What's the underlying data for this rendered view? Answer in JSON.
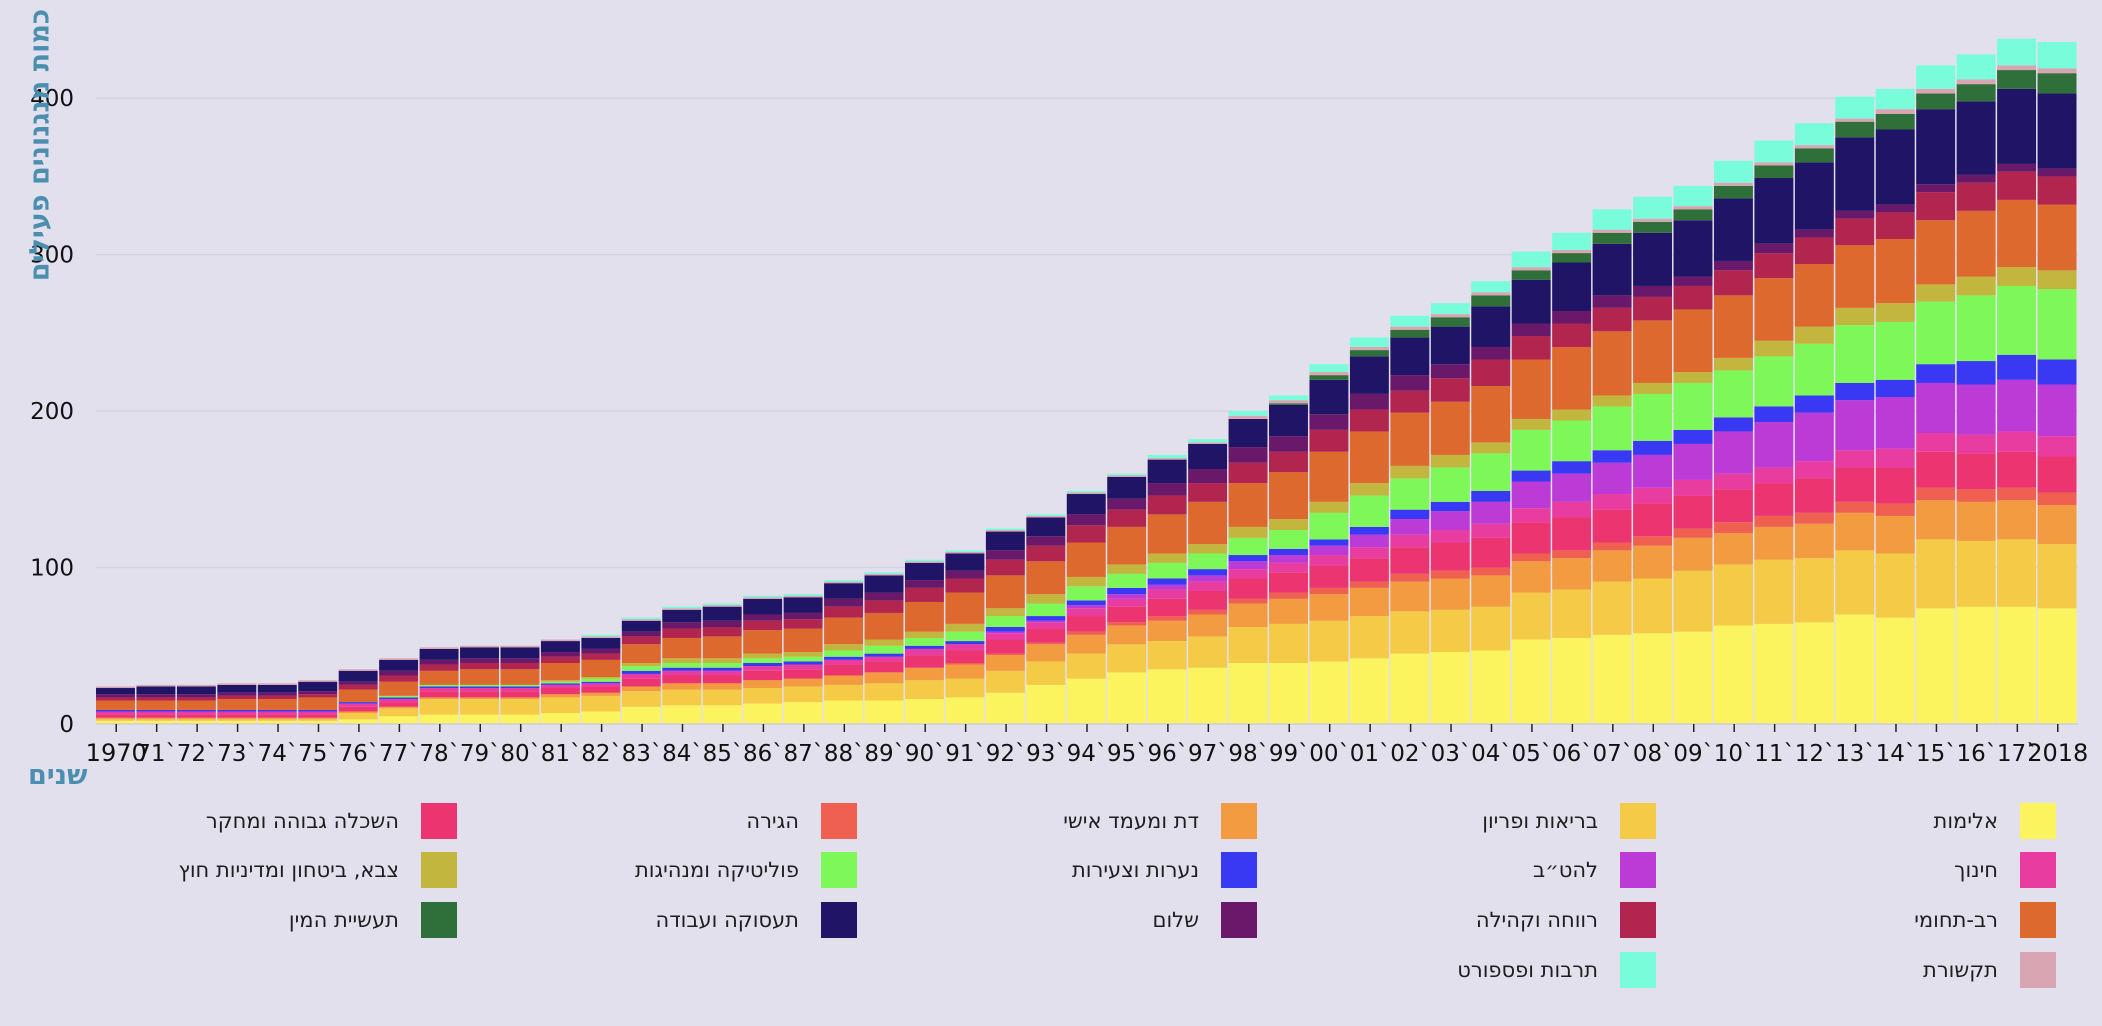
{
  "chart_data": {
    "type": "bar",
    "stacked": true,
    "ylabel": "כמות מנגנונים פעילים",
    "xlabel": "שנים",
    "ylim": [
      0,
      450
    ],
    "yticks": [
      0,
      100,
      200,
      300,
      400
    ],
    "grid": true,
    "legend_position": "bottom",
    "categories": [
      1970,
      1971,
      1972,
      1973,
      1974,
      1975,
      1976,
      1977,
      1978,
      1979,
      1980,
      1981,
      1982,
      1983,
      1984,
      1985,
      1986,
      1987,
      1988,
      1989,
      1990,
      1991,
      1992,
      1993,
      1994,
      1995,
      1996,
      1997,
      1998,
      1999,
      2000,
      2001,
      2002,
      2003,
      2004,
      2005,
      2006,
      2007,
      2008,
      2009,
      2010,
      2011,
      2012,
      2013,
      2014,
      2015,
      2016,
      2017,
      2018
    ],
    "tick_labels": [
      "1970",
      "71`",
      "72`",
      "73`",
      "74`",
      "75`",
      "76`",
      "77`",
      "78`",
      "79`",
      "80`",
      "81`",
      "82`",
      "83`",
      "84`",
      "85`",
      "86`",
      "87`",
      "88`",
      "89`",
      "90`",
      "91`",
      "92`",
      "93`",
      "94`",
      "95`",
      "96`",
      "97`",
      "98`",
      "99`",
      "00`",
      "01`",
      "02`",
      "03`",
      "04`",
      "05`",
      "06`",
      "07`",
      "08`",
      "09`",
      "10`",
      "11`",
      "12`",
      "13`",
      "14`",
      "15`",
      "16`",
      "17`",
      "2018"
    ],
    "series": [
      {
        "name": "אלימות",
        "color": "#fbf45e",
        "values": [
          2,
          2,
          2,
          2,
          2,
          2,
          3,
          5,
          6,
          6,
          6,
          7,
          8,
          11,
          12,
          12,
          13,
          14,
          15,
          15,
          16,
          17,
          20,
          25,
          29,
          33,
          35,
          36,
          39,
          39,
          40,
          42,
          45,
          46,
          47,
          54,
          55,
          57,
          58,
          59,
          63,
          64,
          65,
          70,
          68,
          74,
          75,
          75,
          74
        ]
      },
      {
        "name": "בריאות ופריון",
        "color": "#f5ca47",
        "values": [
          1,
          1,
          1,
          1,
          1,
          1,
          4,
          5,
          10,
          10,
          10,
          10,
          10,
          10,
          10,
          10,
          10,
          10,
          10,
          11,
          12,
          12,
          14,
          15,
          16,
          18,
          18,
          20,
          23,
          25,
          26,
          27,
          27,
          27,
          28,
          30,
          31,
          34,
          35,
          39,
          39,
          41,
          41,
          41,
          41,
          44,
          42,
          43,
          41
        ]
      },
      {
        "name": "דת ומעמד אישי",
        "color": "#f29b40",
        "values": [
          1,
          1,
          1,
          1,
          1,
          1,
          1,
          1,
          1,
          1,
          1,
          2,
          2,
          3,
          4,
          4,
          5,
          5,
          6,
          7,
          8,
          9,
          10,
          11,
          12,
          12,
          13,
          14,
          15,
          16,
          17,
          18,
          19,
          20,
          20,
          20,
          20,
          20,
          21,
          21,
          20,
          21,
          22,
          24,
          24,
          25,
          25,
          25,
          25
        ]
      },
      {
        "name": "הגירה",
        "color": "#ef6051",
        "values": [
          0,
          0,
          0,
          0,
          0,
          0,
          0,
          0,
          0,
          0,
          0,
          0,
          0,
          0,
          0,
          0,
          0,
          0,
          0,
          0,
          0,
          1,
          1,
          1,
          2,
          2,
          3,
          3,
          3,
          4,
          4,
          4,
          5,
          5,
          5,
          5,
          5,
          5,
          6,
          6,
          7,
          7,
          7,
          7,
          8,
          8,
          8,
          8,
          8
        ]
      },
      {
        "name": "השכלה גבוהה ומחקר",
        "color": "#ec3470",
        "values": [
          2,
          2,
          2,
          2,
          2,
          2,
          3,
          3,
          4,
          4,
          4,
          4,
          4,
          5,
          5,
          5,
          6,
          6,
          7,
          7,
          8,
          8,
          9,
          9,
          10,
          10,
          11,
          12,
          13,
          13,
          14,
          15,
          17,
          18,
          19,
          20,
          21,
          21,
          21,
          21,
          21,
          21,
          22,
          22,
          23,
          23,
          23,
          23,
          23
        ]
      },
      {
        "name": "חינוך",
        "color": "#e93ca1",
        "values": [
          2,
          2,
          2,
          2,
          2,
          2,
          2,
          2,
          2,
          2,
          2,
          2,
          2,
          3,
          3,
          3,
          3,
          3,
          3,
          3,
          4,
          4,
          4,
          4,
          5,
          5,
          6,
          6,
          6,
          6,
          7,
          7,
          8,
          8,
          9,
          9,
          10,
          10,
          10,
          10,
          10,
          10,
          11,
          11,
          12,
          12,
          12,
          13,
          13
        ]
      },
      {
        "name": "להט״ב",
        "color": "#bc3ad6",
        "values": [
          0,
          0,
          0,
          0,
          0,
          0,
          0,
          0,
          0,
          0,
          0,
          0,
          0,
          0,
          0,
          0,
          0,
          0,
          0,
          0,
          0,
          0,
          1,
          1,
          2,
          3,
          3,
          4,
          5,
          5,
          6,
          8,
          10,
          12,
          14,
          17,
          18,
          20,
          21,
          23,
          27,
          29,
          31,
          32,
          33,
          32,
          32,
          33,
          33
        ]
      },
      {
        "name": "נערות וצעירות",
        "color": "#3939f4",
        "values": [
          1,
          1,
          1,
          1,
          1,
          1,
          1,
          1,
          1,
          1,
          1,
          1,
          1,
          2,
          2,
          2,
          2,
          2,
          2,
          2,
          2,
          2,
          3,
          3,
          3,
          4,
          4,
          4,
          4,
          4,
          4,
          5,
          6,
          6,
          7,
          7,
          8,
          8,
          9,
          9,
          9,
          10,
          11,
          11,
          11,
          12,
          15,
          16,
          16
        ]
      },
      {
        "name": "פוליטיקה ומנהיגות",
        "color": "#7ef858",
        "values": [
          0,
          0,
          0,
          0,
          0,
          0,
          0,
          1,
          1,
          1,
          1,
          1,
          2,
          3,
          3,
          3,
          3,
          3,
          4,
          5,
          5,
          6,
          7,
          8,
          9,
          9,
          10,
          10,
          11,
          12,
          17,
          20,
          20,
          22,
          24,
          26,
          26,
          28,
          30,
          30,
          30,
          32,
          33,
          37,
          37,
          40,
          42,
          44,
          45
        ]
      },
      {
        "name": "צבא, ביטחון ומדיניות חוץ",
        "color": "#c2b63e",
        "values": [
          0,
          0,
          0,
          0,
          0,
          0,
          0,
          0,
          0,
          0,
          0,
          1,
          1,
          2,
          3,
          3,
          3,
          3,
          4,
          4,
          4,
          5,
          5,
          6,
          6,
          6,
          6,
          6,
          7,
          7,
          7,
          8,
          8,
          8,
          7,
          7,
          7,
          7,
          7,
          7,
          8,
          10,
          11,
          11,
          12,
          11,
          12,
          12,
          12
        ]
      },
      {
        "name": "רב-תחומי",
        "color": "#dd692e",
        "values": [
          6,
          6,
          6,
          7,
          7,
          8,
          8,
          9,
          9,
          10,
          10,
          11,
          11,
          12,
          13,
          14,
          15,
          15,
          17,
          17,
          19,
          20,
          21,
          21,
          22,
          24,
          25,
          27,
          28,
          30,
          32,
          33,
          34,
          34,
          36,
          38,
          40,
          41,
          40,
          40,
          40,
          40,
          40,
          40,
          41,
          41,
          42,
          43,
          42
        ]
      },
      {
        "name": "רווחה וקהילה",
        "color": "#b2254e",
        "values": [
          2,
          2,
          2,
          2,
          2,
          2,
          3,
          4,
          4,
          4,
          4,
          4,
          4,
          5,
          6,
          6,
          6,
          6,
          7,
          8,
          9,
          9,
          10,
          10,
          11,
          11,
          12,
          12,
          13,
          13,
          14,
          14,
          14,
          15,
          17,
          15,
          15,
          15,
          15,
          15,
          16,
          16,
          17,
          17,
          17,
          18,
          18,
          18,
          18
        ]
      },
      {
        "name": "שלום",
        "color": "#6a1869",
        "values": [
          2,
          2,
          2,
          2,
          2,
          2,
          2,
          3,
          3,
          3,
          3,
          3,
          3,
          3,
          4,
          4,
          4,
          4,
          5,
          5,
          5,
          5,
          6,
          6,
          7,
          7,
          8,
          9,
          10,
          10,
          10,
          10,
          10,
          9,
          8,
          8,
          8,
          8,
          7,
          6,
          6,
          6,
          5,
          5,
          5,
          5,
          5,
          5,
          5
        ]
      },
      {
        "name": "תעסוקה ועבודה",
        "color": "#201466",
        "values": [
          4,
          5,
          5,
          5,
          5,
          6,
          7,
          7,
          7,
          7,
          7,
          7,
          7,
          7,
          8,
          9,
          10,
          10,
          10,
          11,
          11,
          11,
          12,
          12,
          13,
          14,
          15,
          16,
          18,
          20,
          22,
          24,
          24,
          24,
          26,
          28,
          31,
          33,
          34,
          36,
          40,
          42,
          43,
          47,
          48,
          48,
          47,
          48,
          48
        ]
      },
      {
        "name": "תעשיית המין",
        "color": "#2f6f3a",
        "values": [
          0,
          0,
          0,
          0,
          0,
          0,
          0,
          0,
          0,
          0,
          0,
          0,
          0,
          0,
          0,
          0,
          0,
          0,
          0,
          0,
          0,
          0,
          0,
          0,
          0,
          0,
          0,
          0,
          0,
          1,
          3,
          4,
          5,
          6,
          7,
          6,
          6,
          7,
          7,
          7,
          8,
          8,
          9,
          10,
          10,
          10,
          11,
          12,
          13
        ]
      },
      {
        "name": "תקשורת",
        "color": "#d9a5b2",
        "values": [
          1,
          1,
          1,
          1,
          1,
          1,
          1,
          1,
          1,
          1,
          1,
          1,
          1,
          1,
          1,
          1,
          1,
          1,
          1,
          1,
          1,
          1,
          1,
          1,
          1,
          1,
          1,
          1,
          2,
          2,
          2,
          2,
          2,
          2,
          2,
          2,
          2,
          2,
          2,
          2,
          2,
          2,
          2,
          2,
          3,
          3,
          3,
          3,
          3
        ]
      },
      {
        "name": "תרבות ופספורט",
        "color": "#78fcda",
        "values": [
          0,
          0,
          0,
          0,
          0,
          0,
          0,
          0,
          0,
          0,
          0,
          0,
          1,
          1,
          1,
          1,
          1,
          1,
          1,
          1,
          1,
          1,
          1,
          1,
          1,
          1,
          2,
          2,
          3,
          3,
          5,
          6,
          7,
          7,
          7,
          10,
          11,
          13,
          14,
          13,
          14,
          14,
          14,
          14,
          13,
          15,
          16,
          17,
          17
        ]
      }
    ]
  }
}
